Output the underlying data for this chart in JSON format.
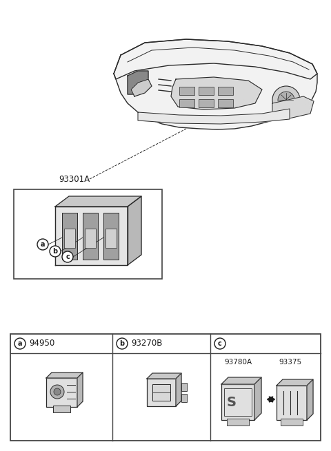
{
  "bg_color": "#ffffff",
  "label_93301A": "93301A",
  "label_94950": "94950",
  "label_93270B": "93270B",
  "label_93780A": "93780A",
  "label_93375": "93375",
  "text_color": "#1a1a1a",
  "border_color": "#444444",
  "line_color": "#2a2a2a",
  "fill_light": "#e0e0e0",
  "fill_mid": "#c8c8c8",
  "fill_dark": "#a0a0a0"
}
